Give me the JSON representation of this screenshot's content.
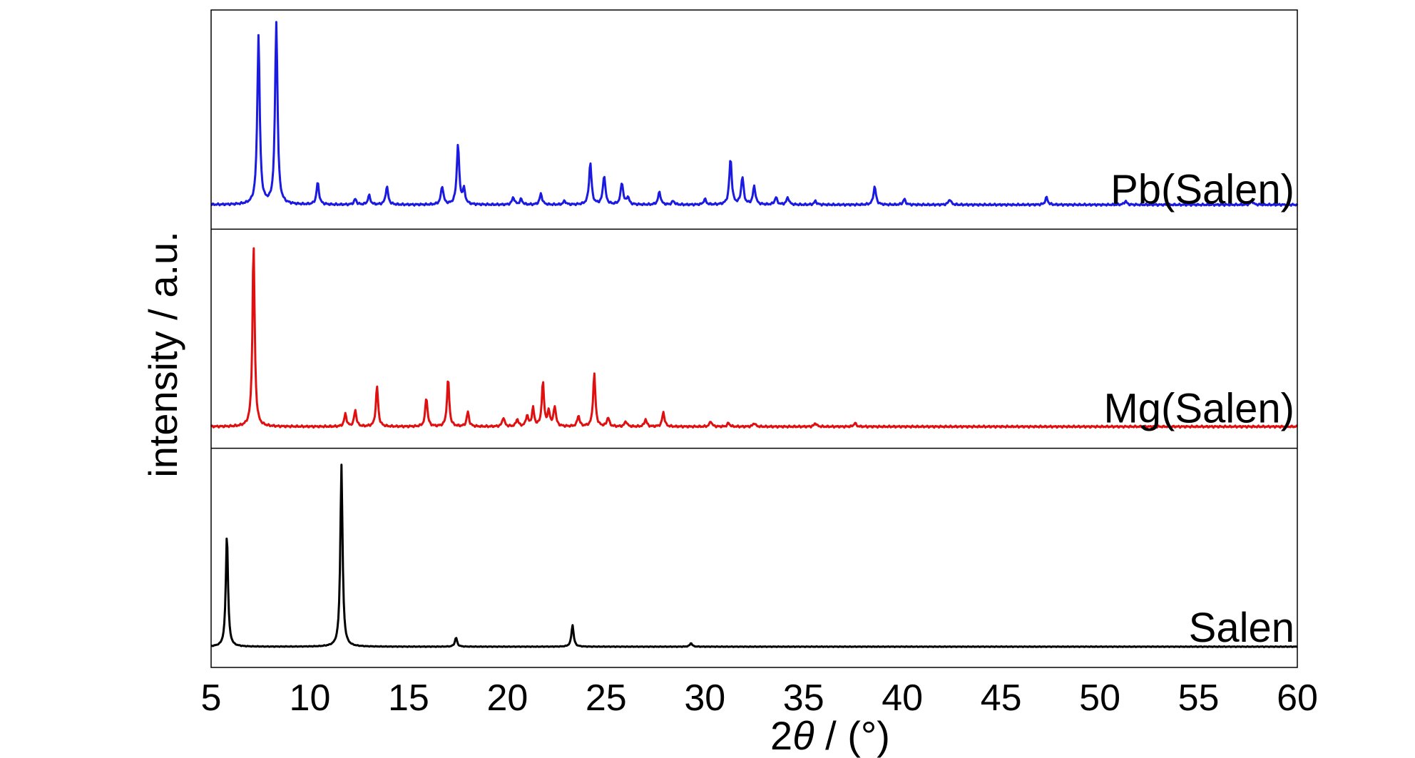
{
  "chart_data": {
    "type": "line",
    "xlabel_prefix": "2",
    "xlabel_symbol": "θ",
    "xlabel_suffix": " / (°)",
    "ylabel": "intensity / a.u.",
    "xlim": [
      5,
      60
    ],
    "xticks": [
      "5",
      "10",
      "15",
      "20",
      "25",
      "30",
      "35",
      "40",
      "45",
      "50",
      "55",
      "60"
    ],
    "grid": false,
    "series": [
      {
        "name": "Pb(Salen)",
        "color": "#1a1ae0",
        "baseline": 0.04,
        "noise": 0.006,
        "width": 0.11,
        "peaks": [
          [
            7.4,
            0.93
          ],
          [
            8.3,
            1.0
          ],
          [
            10.4,
            0.12
          ],
          [
            12.3,
            0.03
          ],
          [
            13.0,
            0.05
          ],
          [
            13.9,
            0.1
          ],
          [
            16.7,
            0.1
          ],
          [
            17.5,
            0.33
          ],
          [
            17.8,
            0.08
          ],
          [
            20.3,
            0.04
          ],
          [
            20.7,
            0.03
          ],
          [
            21.7,
            0.06
          ],
          [
            22.9,
            0.02
          ],
          [
            24.2,
            0.23
          ],
          [
            24.9,
            0.16
          ],
          [
            25.8,
            0.12
          ],
          [
            26.1,
            0.04
          ],
          [
            27.7,
            0.07
          ],
          [
            28.4,
            0.02
          ],
          [
            30.0,
            0.03
          ],
          [
            31.3,
            0.25
          ],
          [
            31.9,
            0.15
          ],
          [
            32.5,
            0.1
          ],
          [
            33.6,
            0.04
          ],
          [
            34.2,
            0.04
          ],
          [
            35.6,
            0.02
          ],
          [
            38.6,
            0.1
          ],
          [
            40.1,
            0.03
          ],
          [
            42.4,
            0.03
          ],
          [
            47.3,
            0.04
          ],
          [
            51.3,
            0.02
          ],
          [
            57.7,
            0.02
          ]
        ]
      },
      {
        "name": "Mg(Salen)",
        "color": "#e01010",
        "baseline": 0.025,
        "noise": 0.006,
        "width": 0.1,
        "peaks": [
          [
            7.15,
            1.0
          ],
          [
            11.8,
            0.07
          ],
          [
            12.3,
            0.09
          ],
          [
            13.4,
            0.22
          ],
          [
            15.9,
            0.16
          ],
          [
            17.0,
            0.26
          ],
          [
            18.0,
            0.08
          ],
          [
            19.8,
            0.05
          ],
          [
            20.5,
            0.04
          ],
          [
            21.0,
            0.06
          ],
          [
            21.3,
            0.1
          ],
          [
            21.8,
            0.24
          ],
          [
            22.1,
            0.08
          ],
          [
            22.4,
            0.11
          ],
          [
            23.6,
            0.06
          ],
          [
            24.4,
            0.29
          ],
          [
            25.1,
            0.05
          ],
          [
            26.0,
            0.03
          ],
          [
            27.0,
            0.04
          ],
          [
            27.9,
            0.08
          ],
          [
            30.3,
            0.03
          ],
          [
            31.2,
            0.02
          ],
          [
            32.5,
            0.02
          ],
          [
            35.6,
            0.02
          ],
          [
            37.6,
            0.02
          ]
        ]
      },
      {
        "name": "Salen",
        "color": "#000000",
        "baseline": 0.02,
        "noise": 0.002,
        "width": 0.1,
        "peaks": [
          [
            5.8,
            0.62
          ],
          [
            11.6,
            1.0
          ],
          [
            17.4,
            0.05
          ],
          [
            23.3,
            0.12
          ],
          [
            29.3,
            0.02
          ]
        ]
      }
    ]
  }
}
